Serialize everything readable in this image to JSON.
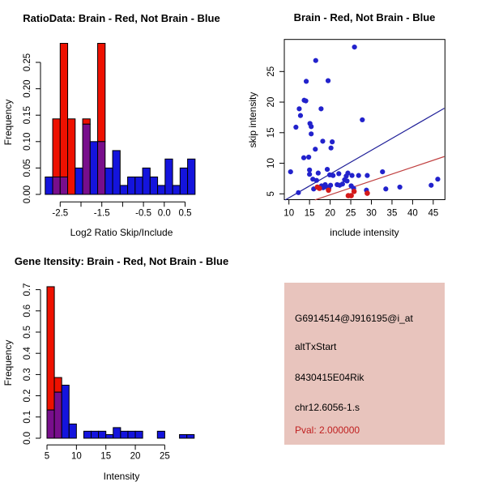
{
  "colors": {
    "bar_blue": "#1414DD",
    "bar_red": "#EE1100",
    "bar_overlap_purple": "#780E8C",
    "bar_border": "#000000",
    "point_blue": "#2222CC",
    "point_red": "#D41A1A",
    "line_blue": "#202099",
    "line_red": "#C04040",
    "info_background": "#E8C4BD",
    "pval_red": "#C02020"
  },
  "chart_data": [
    {
      "type": "bar",
      "subtype": "overlaid-histogram",
      "title": "RatioData: Brain - Red, Not Brain - Blue",
      "xlabel": "Log2 Ratio Skip/Include",
      "ylabel": "Frequency",
      "bin_start": -2.86,
      "bin_width": 0.18,
      "xlim": [
        -2.95,
        0.8
      ],
      "ylim": [
        0,
        0.29
      ],
      "grid": false,
      "xticks": [
        -2.5,
        -2.0,
        -1.5,
        -1.0,
        -0.5,
        0.0,
        0.5
      ],
      "xtick_labels": [
        "-2.5",
        "",
        "-1.5",
        "",
        "-0.5",
        "0.0",
        "0.5"
      ],
      "yticks": [
        0.0,
        0.05,
        0.1,
        0.15,
        0.2,
        0.25
      ],
      "ytick_labels": [
        "0.00",
        "0.05",
        "0.10",
        "0.15",
        "0.20",
        "0.25"
      ],
      "series": [
        {
          "name": "Not Brain",
          "color": "#1414DD",
          "values": [
            0.033,
            0.033,
            0.033,
            0,
            0.05,
            0.133,
            0.1,
            0.1,
            0.05,
            0.083,
            0.017,
            0.033,
            0.033,
            0.05,
            0.033,
            0.017,
            0.067,
            0.017,
            0.05,
            0.067
          ]
        },
        {
          "name": "Brain",
          "color": "#EE1100",
          "values": [
            0,
            0.143,
            0.286,
            0.143,
            0,
            0.143,
            0,
            0.286,
            0,
            0,
            0,
            0,
            0,
            0,
            0,
            0,
            0,
            0,
            0,
            0
          ]
        }
      ],
      "overlap_color": "#780E8C"
    },
    {
      "type": "scatter",
      "title": "Brain - Red, Not Brain - Blue",
      "xlabel": "include intensity",
      "ylabel": "skip intensity",
      "xlim": [
        8.9,
        47.8
      ],
      "ylim": [
        3.5,
        29.6
      ],
      "grid": false,
      "xticks": [
        10,
        15,
        20,
        25,
        30,
        35,
        40,
        45
      ],
      "yticks": [
        5,
        10,
        15,
        20,
        25
      ],
      "series": [
        {
          "name": "Not Brain",
          "color": "#2222CC",
          "points": [
            [
              25.9,
              29.0
            ],
            [
              16.5,
              26.8
            ],
            [
              14.2,
              23.4
            ],
            [
              19.5,
              23.5
            ],
            [
              13.7,
              20.3
            ],
            [
              14.1,
              20.2
            ],
            [
              12.5,
              18.9
            ],
            [
              12.8,
              17.8
            ],
            [
              17.8,
              18.9
            ],
            [
              11.7,
              15.9
            ],
            [
              15.1,
              16.5
            ],
            [
              15.4,
              16.0
            ],
            [
              27.8,
              17.1
            ],
            [
              15.4,
              14.8
            ],
            [
              18.2,
              13.6
            ],
            [
              20.5,
              13.5
            ],
            [
              16.4,
              12.3
            ],
            [
              20.2,
              12.5
            ],
            [
              13.6,
              10.9
            ],
            [
              14.8,
              11.0
            ],
            [
              10.4,
              8.6
            ],
            [
              15.0,
              8.9
            ],
            [
              19.3,
              9.0
            ],
            [
              15.0,
              8.2
            ],
            [
              17.1,
              8.4
            ],
            [
              19.9,
              8.1
            ],
            [
              20.7,
              8.0
            ],
            [
              22.1,
              8.3
            ],
            [
              23.9,
              7.9
            ],
            [
              24.3,
              8.4
            ],
            [
              25.3,
              8.0
            ],
            [
              26.9,
              8.0
            ],
            [
              29.0,
              8.0
            ],
            [
              32.7,
              8.6
            ],
            [
              15.8,
              7.4
            ],
            [
              16.7,
              7.2
            ],
            [
              23.5,
              7.3
            ],
            [
              24.1,
              7.1
            ],
            [
              46.1,
              7.4
            ],
            [
              44.5,
              6.4
            ],
            [
              12.3,
              5.2
            ],
            [
              16.0,
              5.8
            ],
            [
              17.9,
              6.3
            ],
            [
              18.3,
              6.0
            ],
            [
              18.8,
              6.5
            ],
            [
              19.2,
              6.1
            ],
            [
              19.7,
              5.9
            ],
            [
              20.1,
              6.4
            ],
            [
              21.7,
              6.5
            ],
            [
              22.3,
              6.4
            ],
            [
              23.0,
              6.6
            ],
            [
              25.1,
              6.3
            ],
            [
              25.7,
              5.9
            ],
            [
              28.8,
              5.6
            ],
            [
              33.5,
              5.8
            ],
            [
              36.9,
              6.1
            ]
          ]
        },
        {
          "name": "Brain",
          "color": "#D41A1A",
          "points": [
            [
              17.4,
              5.9
            ],
            [
              19.6,
              5.6
            ],
            [
              24.4,
              4.7
            ],
            [
              25.1,
              4.7
            ],
            [
              25.8,
              5.4
            ],
            [
              29.0,
              5.1
            ],
            [
              16.9,
              6.1
            ]
          ]
        }
      ],
      "lines": [
        {
          "name": "not-brain-fit",
          "color": "#202099",
          "from": [
            9.1,
            4.0
          ],
          "to": [
            47.7,
            19.0
          ]
        },
        {
          "name": "brain-fit",
          "color": "#C04040",
          "from": [
            16.3,
            4.0
          ],
          "to": [
            47.7,
            11.1
          ]
        }
      ]
    },
    {
      "type": "bar",
      "subtype": "overlaid-histogram",
      "title": "Gene Itensity: Brain - Red, Not Brain - Blue",
      "xlabel": "Intensity",
      "ylabel": "Frequency",
      "bin_start": 5,
      "bin_width": 1.25,
      "xlim": [
        4.5,
        30.5
      ],
      "ylim": [
        0,
        0.72
      ],
      "grid": false,
      "xticks": [
        5,
        10,
        15,
        20,
        25
      ],
      "xtick_labels": [
        "5",
        "10",
        "15",
        "20",
        "25"
      ],
      "yticks": [
        0.0,
        0.1,
        0.2,
        0.3,
        0.4,
        0.5,
        0.6,
        0.7
      ],
      "ytick_labels": [
        "0.0",
        "0.1",
        "0.2",
        "0.3",
        "0.4",
        "0.5",
        "0.6",
        "0.7"
      ],
      "series": [
        {
          "name": "Not Brain",
          "color": "#1414DD",
          "values": [
            0.133,
            0.217,
            0.25,
            0.067,
            0,
            0.033,
            0.033,
            0.033,
            0.017,
            0.05,
            0.033,
            0.033,
            0.033,
            0,
            0,
            0.033,
            0,
            0,
            0.017,
            0.017
          ]
        },
        {
          "name": "Brain",
          "color": "#EE1100",
          "values": [
            0.714,
            0.286,
            0,
            0,
            0,
            0,
            0,
            0,
            0,
            0,
            0,
            0,
            0,
            0,
            0,
            0,
            0,
            0,
            0,
            0
          ]
        }
      ],
      "overlap_color": "#780E8C"
    }
  ],
  "panels": {
    "info_panel": {
      "background": "#E8C4BD",
      "lines": [
        {
          "text": "G6914514@J916195@i_at",
          "color": "#000000"
        },
        {
          "text": "altTxStart",
          "color": "#000000"
        },
        {
          "text": "8430415E04Rik",
          "color": "#000000"
        },
        {
          "text": "chr12.6056-1.s",
          "color": "#000000"
        },
        {
          "text": "Pval: 2.000000",
          "color": "#C02020"
        }
      ]
    }
  }
}
